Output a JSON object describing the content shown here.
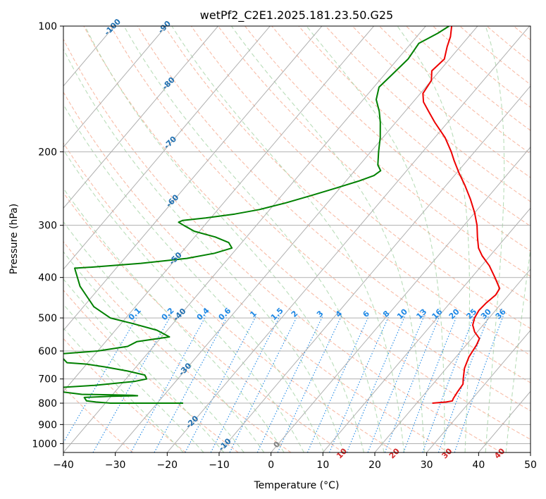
{
  "chart_data": {
    "type": "line",
    "subtype": "skew-T log-P diagram",
    "title": "wetPf2_C2E1.2025.181.23.50.G25",
    "xlabel": "Temperature (°C)",
    "ylabel": "Pressure (hPa)",
    "xlim": [
      -40,
      50
    ],
    "ylim": [
      1050,
      100
    ],
    "y_scale": "log",
    "x_ticks": [
      -40,
      -30,
      -20,
      -10,
      0,
      10,
      20,
      30,
      40,
      50
    ],
    "x_tick_labels": [
      "−40",
      "−30",
      "−20",
      "−10",
      "0",
      "10",
      "20",
      "30",
      "40",
      "50"
    ],
    "y_ticks": [
      100,
      200,
      300,
      400,
      500,
      600,
      700,
      800,
      900,
      1000
    ],
    "y_tick_labels": [
      "100",
      "200",
      "300",
      "400",
      "500",
      "600",
      "700",
      "800",
      "900",
      "1000"
    ],
    "colors": {
      "temperature": "#ee0000",
      "dewpoint": "#008000",
      "isotherm": "#b0b0b0",
      "isobar": "#b0b0b0",
      "dry_adiabat": "#f5a58a",
      "moist_adiabat": "#a8d4a8",
      "mixing_ratio": "#1e88e5",
      "isotherm_label": "#1f6fb0",
      "adiabat_label": "#d62728"
    },
    "series": [
      {
        "role": "temperature",
        "points": [
          {
            "p": 800,
            "t": 23.0
          },
          {
            "p": 795,
            "t": 25.5
          },
          {
            "p": 790,
            "t": 26.5
          },
          {
            "p": 780,
            "t": 26.3
          },
          {
            "p": 750,
            "t": 26.0
          },
          {
            "p": 720,
            "t": 25.8
          },
          {
            "p": 700,
            "t": 25.0
          },
          {
            "p": 660,
            "t": 23.5
          },
          {
            "p": 620,
            "t": 22.5
          },
          {
            "p": 580,
            "t": 22.0
          },
          {
            "p": 560,
            "t": 21.5
          },
          {
            "p": 540,
            "t": 19.5
          },
          {
            "p": 520,
            "t": 18.0
          },
          {
            "p": 500,
            "t": 17.2
          },
          {
            "p": 480,
            "t": 16.8
          },
          {
            "p": 460,
            "t": 17.0
          },
          {
            "p": 440,
            "t": 17.5
          },
          {
            "p": 425,
            "t": 17.2
          },
          {
            "p": 400,
            "t": 14.5
          },
          {
            "p": 375,
            "t": 11.5
          },
          {
            "p": 355,
            "t": 8.5
          },
          {
            "p": 340,
            "t": 6.5
          },
          {
            "p": 320,
            "t": 4.5
          },
          {
            "p": 300,
            "t": 2.5
          },
          {
            "p": 280,
            "t": 0.0
          },
          {
            "p": 260,
            "t": -3.0
          },
          {
            "p": 240,
            "t": -6.5
          },
          {
            "p": 225,
            "t": -9.5
          },
          {
            "p": 210,
            "t": -12.5
          },
          {
            "p": 200,
            "t": -14.5
          },
          {
            "p": 185,
            "t": -18.0
          },
          {
            "p": 170,
            "t": -22.5
          },
          {
            "p": 160,
            "t": -25.5
          },
          {
            "p": 152,
            "t": -28.0
          },
          {
            "p": 145,
            "t": -29.5
          },
          {
            "p": 135,
            "t": -30.0
          },
          {
            "p": 128,
            "t": -31.5
          },
          {
            "p": 120,
            "t": -31.0
          },
          {
            "p": 112,
            "t": -32.5
          },
          {
            "p": 106,
            "t": -33.5
          },
          {
            "p": 100,
            "t": -35.0
          }
        ]
      },
      {
        "role": "dewpoint",
        "points": [
          {
            "p": 800,
            "t": -25.0
          },
          {
            "p": 800,
            "t": -39.0
          },
          {
            "p": 795,
            "t": -42.0
          },
          {
            "p": 790,
            "t": -44.0
          },
          {
            "p": 775,
            "t": -45.0
          },
          {
            "p": 770,
            "t": -40.0
          },
          {
            "p": 768,
            "t": -35.0
          },
          {
            "p": 766,
            "t": -36.0
          },
          {
            "p": 764,
            "t": -40.0
          },
          {
            "p": 762,
            "t": -46.0
          },
          {
            "p": 745,
            "t": -53.0
          },
          {
            "p": 735,
            "t": -52.0
          },
          {
            "p": 725,
            "t": -45.0
          },
          {
            "p": 710,
            "t": -38.0
          },
          {
            "p": 700,
            "t": -36.0
          },
          {
            "p": 685,
            "t": -37.0
          },
          {
            "p": 670,
            "t": -41.0
          },
          {
            "p": 655,
            "t": -46.0
          },
          {
            "p": 645,
            "t": -50.0
          },
          {
            "p": 640,
            "t": -54.0
          },
          {
            "p": 610,
            "t": -57.0
          },
          {
            "p": 600,
            "t": -50.0
          },
          {
            "p": 585,
            "t": -45.0
          },
          {
            "p": 570,
            "t": -44.0
          },
          {
            "p": 555,
            "t": -38.5
          },
          {
            "p": 535,
            "t": -42.0
          },
          {
            "p": 515,
            "t": -48.0
          },
          {
            "p": 500,
            "t": -53.0
          },
          {
            "p": 470,
            "t": -58.0
          },
          {
            "p": 420,
            "t": -64.0
          },
          {
            "p": 380,
            "t": -68.0
          },
          {
            "p": 378,
            "t": -65.0
          },
          {
            "p": 370,
            "t": -56.0
          },
          {
            "p": 360,
            "t": -48.0
          },
          {
            "p": 350,
            "t": -43.5
          },
          {
            "p": 340,
            "t": -41.0
          },
          {
            "p": 330,
            "t": -42.5
          },
          {
            "p": 320,
            "t": -46.0
          },
          {
            "p": 310,
            "t": -51.0
          },
          {
            "p": 300,
            "t": -54.0
          },
          {
            "p": 295,
            "t": -55.5
          },
          {
            "p": 292,
            "t": -55.0
          },
          {
            "p": 288,
            "t": -51.0
          },
          {
            "p": 282,
            "t": -46.0
          },
          {
            "p": 275,
            "t": -42.0
          },
          {
            "p": 265,
            "t": -38.0
          },
          {
            "p": 255,
            "t": -34.5
          },
          {
            "p": 245,
            "t": -31.0
          },
          {
            "p": 235,
            "t": -27.5
          },
          {
            "p": 228,
            "t": -25.5
          },
          {
            "p": 222,
            "t": -25.0
          },
          {
            "p": 215,
            "t": -26.5
          },
          {
            "p": 200,
            "t": -28.5
          },
          {
            "p": 185,
            "t": -30.5
          },
          {
            "p": 170,
            "t": -33.0
          },
          {
            "p": 160,
            "t": -35.0
          },
          {
            "p": 150,
            "t": -37.5
          },
          {
            "p": 140,
            "t": -39.0
          },
          {
            "p": 130,
            "t": -38.5
          },
          {
            "p": 120,
            "t": -38.0
          },
          {
            "p": 110,
            "t": -38.5
          },
          {
            "p": 104,
            "t": -36.5
          },
          {
            "p": 100,
            "t": -35.5
          }
        ]
      }
    ],
    "isotherm_labels": [
      "-100",
      "-90",
      "-80",
      "-70",
      "-60",
      "-50",
      "-40",
      "-30",
      "-20",
      "-10",
      "0"
    ],
    "dry_adiabat_labels": [
      "10",
      "20",
      "30",
      "40"
    ],
    "mixing_ratio_labels": [
      "0.1",
      "0.2",
      "0.4",
      "0.6",
      "1",
      "1.5",
      "2",
      "3",
      "4",
      "6",
      "8",
      "10",
      "13",
      "16",
      "20",
      "25",
      "30",
      "36"
    ],
    "grid": true
  }
}
